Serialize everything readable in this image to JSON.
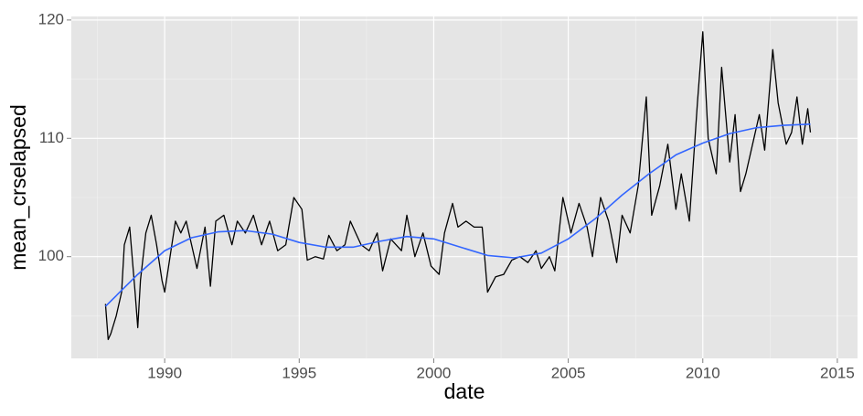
{
  "chart_data": {
    "type": "line",
    "x_label": "date",
    "y_label": "mean_crselapsed",
    "xlim": [
      1986.53,
      2015.75
    ],
    "ylim": [
      91.4,
      120.3
    ],
    "xticks": [
      1990,
      1995,
      2000,
      2005,
      2010,
      2015
    ],
    "yticks": [
      100,
      110,
      120
    ],
    "minor_xticks": [
      1987.5,
      1992.5,
      1997.5,
      2002.5,
      2007.5,
      2012.5
    ],
    "minor_yticks": [
      95,
      105,
      115
    ],
    "grid": true,
    "series": [
      {
        "color": "#000000",
        "x": [
          1987.8,
          1987.9,
          1988.0,
          1988.2,
          1988.4,
          1988.5,
          1988.7,
          1988.9,
          1989.0,
          1989.1,
          1989.3,
          1989.5,
          1989.7,
          1989.9,
          1990.0,
          1990.2,
          1990.4,
          1990.6,
          1990.8,
          1991.0,
          1991.2,
          1991.5,
          1991.7,
          1991.9,
          1992.2,
          1992.5,
          1992.7,
          1993.0,
          1993.3,
          1993.6,
          1993.9,
          1994.2,
          1994.5,
          1994.8,
          1995.1,
          1995.3,
          1995.6,
          1995.9,
          1996.1,
          1996.4,
          1996.7,
          1996.9,
          1997.3,
          1997.6,
          1997.9,
          1998.1,
          1998.4,
          1998.8,
          1999.0,
          1999.3,
          1999.6,
          1999.9,
          2000.2,
          2000.4,
          2000.7,
          2000.9,
          2001.2,
          2001.5,
          2001.8,
          2002.0,
          2002.3,
          2002.6,
          2002.9,
          2003.2,
          2003.5,
          2003.8,
          2004.0,
          2004.3,
          2004.5,
          2004.8,
          2005.1,
          2005.4,
          2005.7,
          2005.9,
          2006.2,
          2006.5,
          2006.8,
          2007.0,
          2007.3,
          2007.6,
          2007.9,
          2008.1,
          2008.4,
          2008.7,
          2009.0,
          2009.2,
          2009.5,
          2009.8,
          2010.0,
          2010.2,
          2010.5,
          2010.7,
          2011.0,
          2011.2,
          2011.4,
          2011.6,
          2011.9,
          2012.1,
          2012.3,
          2012.6,
          2012.8,
          2013.1,
          2013.3,
          2013.5,
          2013.7,
          2013.9,
          2014.0
        ],
        "values": [
          96,
          93,
          93.5,
          95,
          97,
          101,
          102.5,
          97,
          94,
          98,
          102,
          103.5,
          101,
          98,
          97,
          100,
          103,
          102,
          103,
          101,
          99,
          102.5,
          97.5,
          103,
          103.5,
          101,
          103,
          102,
          103.5,
          101,
          103,
          100.5,
          101,
          105,
          104,
          99.7,
          100,
          99.8,
          101.8,
          100.5,
          101,
          103,
          101,
          100.5,
          102,
          98.8,
          101.5,
          100.5,
          103.5,
          100,
          102,
          99.2,
          98.5,
          102,
          104.5,
          102.5,
          103,
          102.5,
          102.5,
          97,
          98.3,
          98.5,
          99.7,
          100,
          99.5,
          100.5,
          99,
          100,
          98.8,
          105,
          102,
          104.5,
          102.5,
          100,
          105,
          103,
          99.5,
          103.5,
          102,
          106,
          113.5,
          103.5,
          106,
          109.5,
          104,
          107,
          103,
          113,
          119,
          110,
          107,
          116,
          108,
          112,
          105.5,
          107,
          110,
          112,
          109,
          117.5,
          113,
          109.5,
          110.5,
          113.5,
          109.5,
          112.5,
          110.5
        ]
      },
      {
        "color": "#3366FF",
        "x": [
          1987.8,
          1989,
          1990,
          1991,
          1992,
          1993,
          1994,
          1995,
          1996,
          1997,
          1998,
          1999,
          2000,
          2001,
          2002,
          2003,
          2004,
          2005,
          2006,
          2007,
          2008,
          2009,
          2010,
          2011,
          2012,
          2013,
          2014
        ],
        "values": [
          95.8,
          98.5,
          100.5,
          101.6,
          102.1,
          102.2,
          101.9,
          101.2,
          100.8,
          100.8,
          101.3,
          101.7,
          101.5,
          100.8,
          100.1,
          99.9,
          100.3,
          101.5,
          103.2,
          105.2,
          107.0,
          108.6,
          109.6,
          110.4,
          110.9,
          111.1,
          111.2
        ]
      }
    ]
  }
}
